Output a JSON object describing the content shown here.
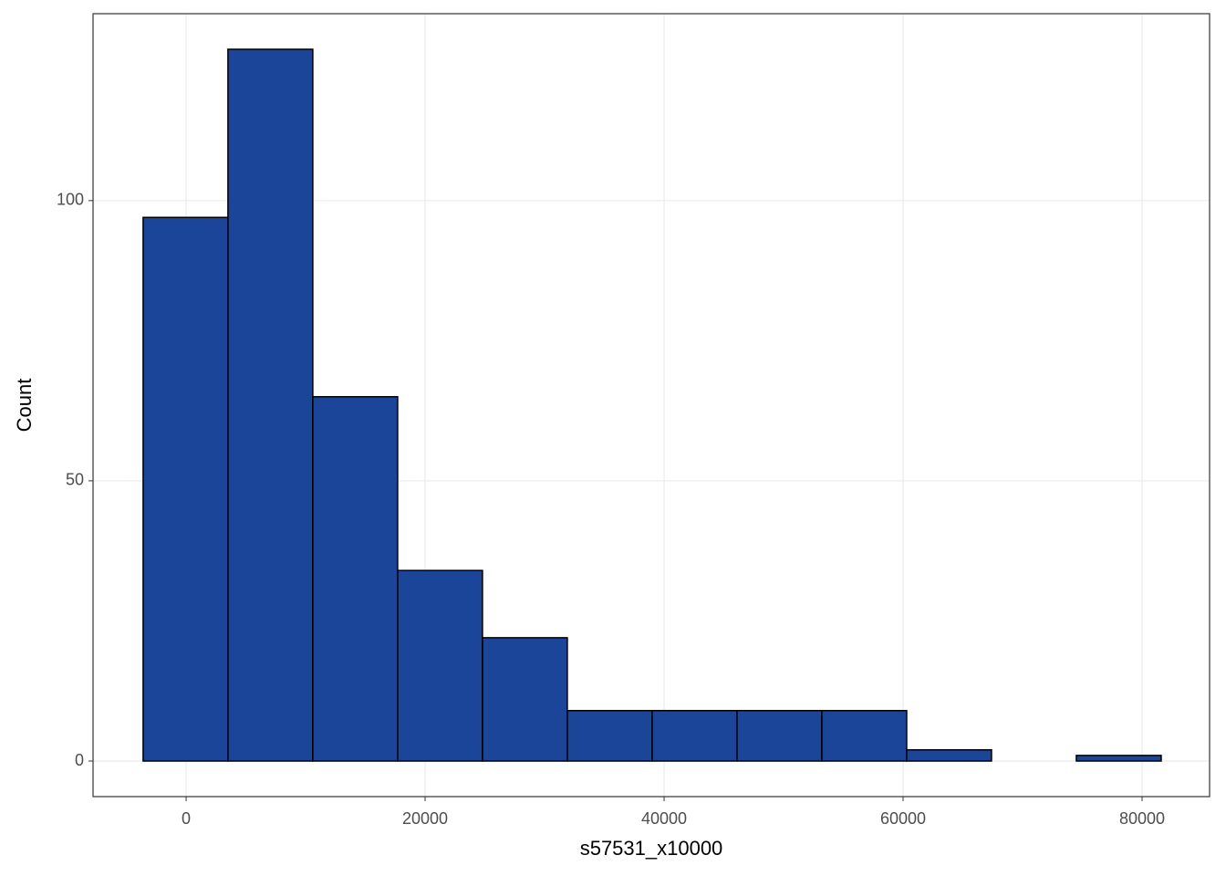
{
  "chart_data": {
    "type": "histogram",
    "x_label": "s57531_x10000",
    "y_label": "Count",
    "bins": [
      -3600,
      3500,
      10600,
      17700,
      24800,
      31900,
      39000,
      46100,
      53200,
      60300,
      67400,
      74500,
      81600
    ],
    "values": [
      97,
      127,
      65,
      34,
      22,
      9,
      9,
      9,
      9,
      2,
      0,
      1
    ],
    "color": "#1a4598",
    "edge_color": "#000000",
    "xlim": [
      -7790,
      85650
    ],
    "ylim": [
      -6.35,
      133.35
    ],
    "xticks": [
      0,
      20000,
      40000,
      60000,
      80000
    ],
    "yticks": [
      0,
      50,
      100
    ],
    "grid": true
  }
}
